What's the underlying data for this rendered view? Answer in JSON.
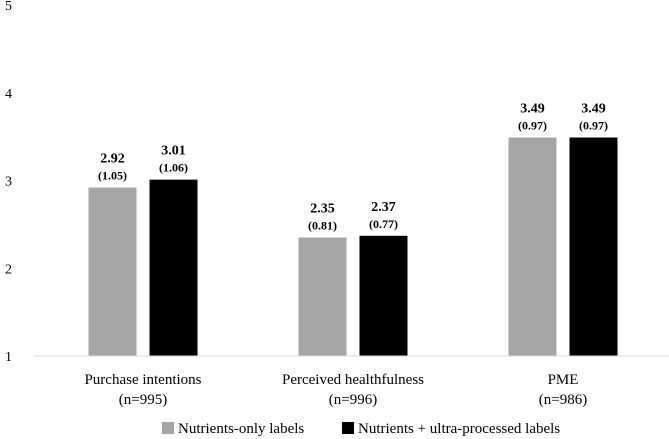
{
  "chart_data": {
    "type": "bar",
    "title": "",
    "xlabel": "",
    "ylabel": "",
    "ylim": [
      1,
      5
    ],
    "yticks": [
      "1",
      "2",
      "3",
      "4",
      "5"
    ],
    "categories": [
      {
        "name": "Purchase intentions",
        "n": "(n=995)"
      },
      {
        "name": "Perceived healthfulness",
        "n": "(n=996)"
      },
      {
        "name": "PME",
        "n": "(n=986)"
      }
    ],
    "series": [
      {
        "name": "Nutrients-only labels",
        "color": "#a6a6a6",
        "values": [
          2.92,
          2.35,
          3.49
        ],
        "value_labels": [
          "2.92",
          "2.35",
          "3.49"
        ],
        "sd_labels": [
          "(1.05)",
          "(0.81)",
          "(0.97)"
        ]
      },
      {
        "name": "Nutrients + ultra-processed labels",
        "color": "#000000",
        "values": [
          3.01,
          2.37,
          3.49
        ],
        "value_labels": [
          "3.01",
          "2.37",
          "3.49"
        ],
        "sd_labels": [
          "(1.06)",
          "(0.77)",
          "(0.97)"
        ]
      }
    ],
    "legend_position": "bottom",
    "grid": false
  }
}
